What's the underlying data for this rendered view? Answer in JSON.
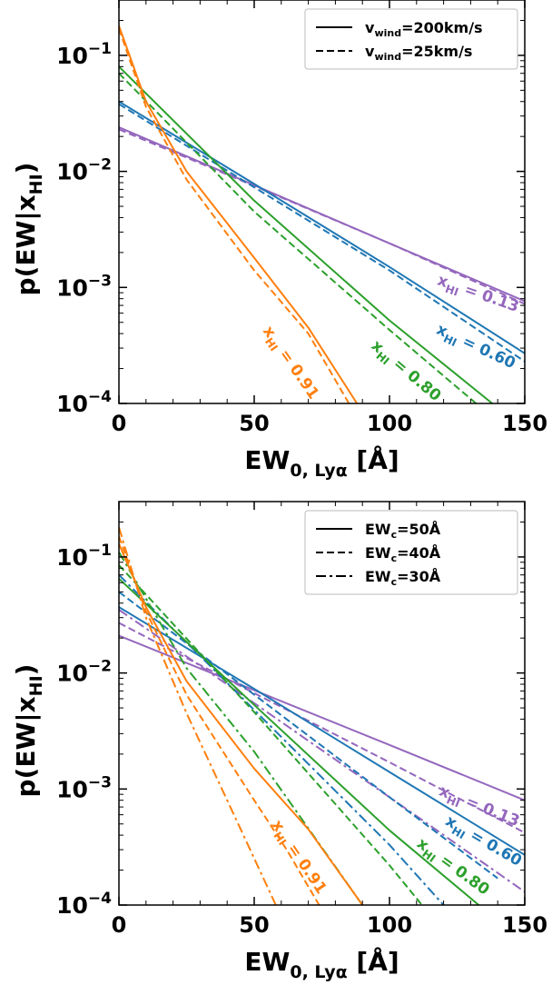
{
  "chart_data": [
    {
      "type": "line",
      "xlabel": "EW",
      "xlabel_sub": "0, Lyα",
      "xlabel_unit": " [Å]",
      "ylabel": "p(EW|x",
      "ylabel_sub": "HI",
      "ylabel_tail": ")",
      "xlim": [
        0,
        150
      ],
      "ylim": [
        0.0001,
        0.3
      ],
      "yscale": "log",
      "x_ticks": [
        "0",
        "50",
        "100",
        "150"
      ],
      "y_ticks": [
        {
          "value": 0.1,
          "exp": "−1"
        },
        {
          "value": 0.01,
          "exp": "−2"
        },
        {
          "value": 0.001,
          "exp": "−3"
        },
        {
          "value": 0.0001,
          "exp": "−4"
        }
      ],
      "y_tick_base": "10",
      "legend": {
        "placement": "top-right",
        "entries": [
          {
            "style": "solid",
            "label": "v",
            "sub": "wind",
            "tail": "=200km/s"
          },
          {
            "style": "dashed",
            "label": "v",
            "sub": "wind",
            "tail": "=25km/s"
          }
        ]
      },
      "series": [
        {
          "color": "#9467bd",
          "style": "solid",
          "label": "x",
          "sub": "HI",
          "tail": " = 0.13",
          "x": [
            0,
            50,
            100,
            150
          ],
          "y": [
            0.024,
            0.0076,
            0.0024,
            0.00076
          ]
        },
        {
          "color": "#9467bd",
          "style": "dashed",
          "x": [
            0,
            50,
            100,
            150
          ],
          "y": [
            0.023,
            0.0075,
            0.0024,
            0.00072
          ]
        },
        {
          "color": "#1f77b4",
          "style": "solid",
          "label": "x",
          "sub": "HI",
          "tail": " = 0.60",
          "x": [
            0,
            50,
            100,
            150
          ],
          "y": [
            0.04,
            0.0078,
            0.0015,
            0.00027
          ]
        },
        {
          "color": "#1f77b4",
          "style": "dashed",
          "x": [
            0,
            50,
            100,
            150
          ],
          "y": [
            0.038,
            0.0073,
            0.0014,
            0.00023
          ]
        },
        {
          "color": "#2ca02c",
          "style": "solid",
          "label": "x",
          "sub": "HI",
          "tail": " = 0.80",
          "x": [
            0,
            50,
            100,
            138
          ],
          "y": [
            0.08,
            0.0056,
            0.00052,
            0.0001
          ]
        },
        {
          "color": "#2ca02c",
          "style": "dashed",
          "x": [
            0,
            50,
            100,
            132
          ],
          "y": [
            0.07,
            0.0045,
            0.00043,
            0.0001
          ]
        },
        {
          "color": "#ff7f0e",
          "style": "solid",
          "label": "x",
          "sub": "HI",
          "tail": " = 0.91",
          "x": [
            0,
            10,
            25,
            50,
            70,
            88
          ],
          "y": [
            0.18,
            0.04,
            0.01,
            0.0018,
            0.00045,
            0.0001
          ]
        },
        {
          "color": "#ff7f0e",
          "style": "dashed",
          "x": [
            0,
            10,
            25,
            50,
            70,
            85
          ],
          "y": [
            0.17,
            0.036,
            0.0085,
            0.0014,
            0.0004,
            0.0001
          ]
        }
      ]
    },
    {
      "type": "line",
      "xlabel": "EW",
      "xlabel_sub": "0, Lyα",
      "xlabel_unit": " [Å]",
      "ylabel": "p(EW|x",
      "ylabel_sub": "HI",
      "ylabel_tail": ")",
      "xlim": [
        0,
        150
      ],
      "ylim": [
        0.0001,
        0.3
      ],
      "yscale": "log",
      "x_ticks": [
        "0",
        "50",
        "100",
        "150"
      ],
      "y_ticks": [
        {
          "value": 0.1,
          "exp": "−1"
        },
        {
          "value": 0.01,
          "exp": "−2"
        },
        {
          "value": 0.001,
          "exp": "−3"
        },
        {
          "value": 0.0001,
          "exp": "−4"
        }
      ],
      "y_tick_base": "10",
      "legend": {
        "placement": "top-right",
        "entries": [
          {
            "style": "solid",
            "label": "EW",
            "sub": "c",
            "tail": "=50Å"
          },
          {
            "style": "dashed",
            "label": "EW",
            "sub": "c",
            "tail": "=40Å"
          },
          {
            "style": "dashdot",
            "label": "EW",
            "sub": "c",
            "tail": "=30Å"
          }
        ]
      },
      "series": [
        {
          "color": "#9467bd",
          "style": "solid",
          "label": "x",
          "sub": "HI",
          "tail": " = 0.13",
          "x": [
            0,
            50,
            100,
            150
          ],
          "y": [
            0.021,
            0.0071,
            0.0024,
            0.0008
          ]
        },
        {
          "color": "#9467bd",
          "style": "dashed",
          "x": [
            0,
            50,
            100,
            150
          ],
          "y": [
            0.027,
            0.0067,
            0.0017,
            0.00042
          ]
        },
        {
          "color": "#9467bd",
          "style": "dashdot",
          "x": [
            0,
            50,
            100,
            150
          ],
          "y": [
            0.035,
            0.0055,
            0.00085,
            0.00013
          ]
        },
        {
          "color": "#1f77b4",
          "style": "solid",
          "label": "x",
          "sub": "HI",
          "tail": " = 0.60",
          "x": [
            0,
            50,
            100,
            150
          ],
          "y": [
            0.037,
            0.0073,
            0.0014,
            0.00027
          ]
        },
        {
          "color": "#1f77b4",
          "style": "dashed",
          "x": [
            0,
            50,
            100,
            140
          ],
          "y": [
            0.05,
            0.0065,
            0.00085,
            0.00017
          ]
        },
        {
          "color": "#1f77b4",
          "style": "dashdot",
          "x": [
            0,
            50,
            100,
            120
          ],
          "y": [
            0.07,
            0.0048,
            0.00033,
            0.0001
          ]
        },
        {
          "color": "#2ca02c",
          "style": "solid",
          "label": "x",
          "sub": "HI",
          "tail": " = 0.80",
          "x": [
            0,
            50,
            100,
            133
          ],
          "y": [
            0.065,
            0.0053,
            0.00044,
            0.0001
          ]
        },
        {
          "color": "#2ca02c",
          "style": "dashed",
          "x": [
            0,
            50,
            100,
            112
          ],
          "y": [
            0.085,
            0.0046,
            0.00022,
            0.0001
          ]
        },
        {
          "color": "#2ca02c",
          "style": "dashdot",
          "x": [
            0,
            25,
            50,
            90
          ],
          "y": [
            0.11,
            0.011,
            0.0021,
            0.0001
          ]
        },
        {
          "color": "#ff7f0e",
          "style": "solid",
          "label": "x",
          "sub": "HI",
          "tail": " = 0.91",
          "x": [
            0,
            10,
            25,
            50,
            70,
            90
          ],
          "y": [
            0.13,
            0.037,
            0.0085,
            0.0015,
            0.00045,
            0.0001
          ]
        },
        {
          "color": "#ff7f0e",
          "style": "dashed",
          "x": [
            0,
            10,
            25,
            50,
            62,
            74
          ],
          "y": [
            0.15,
            0.034,
            0.0065,
            0.0008,
            0.0003,
            0.0001
          ]
        },
        {
          "color": "#ff7f0e",
          "style": "dashdot",
          "x": [
            0,
            10,
            25,
            45,
            58
          ],
          "y": [
            0.18,
            0.03,
            0.0045,
            0.00045,
            0.0001
          ]
        }
      ]
    }
  ]
}
